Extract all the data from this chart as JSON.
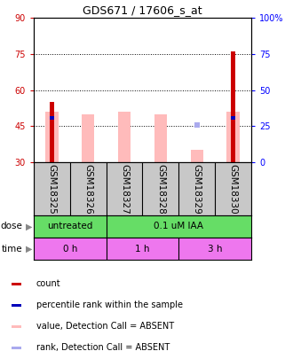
{
  "title": "GDS671 / 17606_s_at",
  "samples": [
    "GSM18325",
    "GSM18326",
    "GSM18327",
    "GSM18328",
    "GSM18329",
    "GSM18330"
  ],
  "ylim_left": [
    30,
    90
  ],
  "ylim_right": [
    0,
    100
  ],
  "yticks_left": [
    30,
    45,
    60,
    75,
    90
  ],
  "yticks_right": [
    0,
    25,
    50,
    75,
    100
  ],
  "left_tick_labels": [
    "30",
    "45",
    "60",
    "75",
    "90"
  ],
  "right_tick_labels": [
    "0",
    "25",
    "50",
    "75",
    "100%"
  ],
  "red_bars_height": [
    55,
    0,
    0,
    0,
    0,
    76
  ],
  "blue_bar_y": [
    47.5,
    0,
    0,
    0,
    0,
    47.5
  ],
  "pink_bars_bottom": [
    30,
    30,
    30,
    30,
    30,
    30
  ],
  "pink_bars_top": [
    51,
    50,
    51,
    50,
    35,
    51
  ],
  "pink_bar_top_color": [
    50,
    50,
    51,
    50,
    35,
    50
  ],
  "light_blue_dot_y": [
    null,
    null,
    null,
    null,
    45.5,
    null
  ],
  "dose_labels": [
    "untreated",
    "0.1 uM IAA"
  ],
  "time_labels": [
    "0 h",
    "1 h",
    "3 h"
  ],
  "dose_color": "#66dd66",
  "time_color": "#ee77ee",
  "label_area_bg": "#c8c8c8",
  "red_color": "#cc0000",
  "blue_color": "#0000bb",
  "pink_color": "#ffbbbb",
  "light_blue_color": "#aaaaee",
  "grid_yticks": [
    45,
    60,
    75
  ],
  "dose_arrow_color": "#888888",
  "title_fontsize": 9,
  "tick_fontsize": 7,
  "label_fontsize": 7.5,
  "legend_fontsize": 7
}
